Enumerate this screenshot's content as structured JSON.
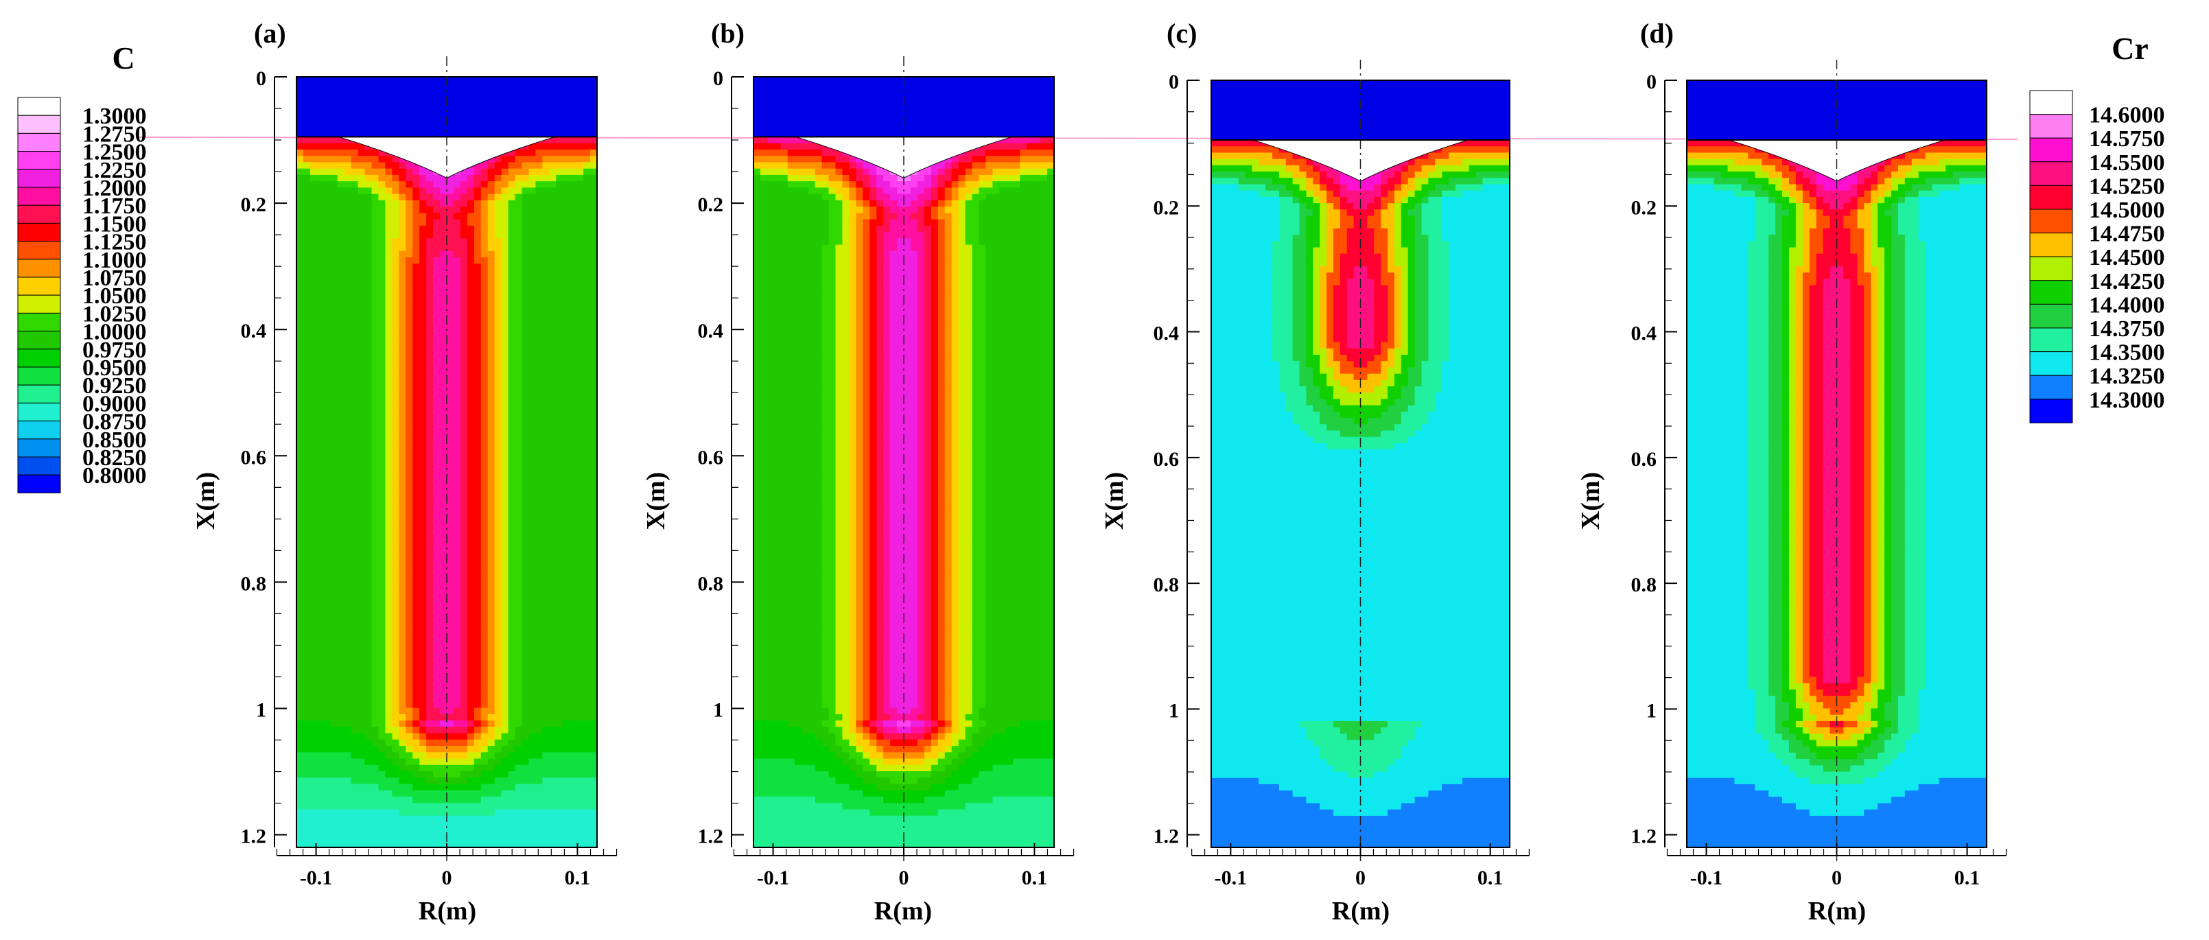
{
  "chart_data": [
    {
      "type": "heatmap",
      "panel_label": "(a)",
      "variable": "C",
      "xlabel": "R(m)",
      "ylabel": "X(m)",
      "x_ticks": [
        "-0.1",
        "0",
        "0.1"
      ],
      "y_ticks": [
        "0",
        "0.2",
        "0.4",
        "0.6",
        "0.8",
        "1",
        "1.2"
      ],
      "xlim": [
        -0.115,
        0.115
      ],
      "ylim": [
        0,
        1.22
      ],
      "domain_r": [
        -0.115,
        0.115
      ],
      "mold_region_x": [
        0,
        0.095
      ],
      "centerline_peak_x": [
        0.3,
        1.0
      ],
      "centerline_peak_value": 1.1875,
      "approx_edge_value": 0.975,
      "approx_bottom_value": 0.875
    },
    {
      "type": "heatmap",
      "panel_label": "(b)",
      "variable": "C",
      "xlabel": "R(m)",
      "ylabel": "X(m)",
      "x_ticks": [
        "-0.1",
        "0",
        "0.1"
      ],
      "y_ticks": [
        "0",
        "0.2",
        "0.4",
        "0.6",
        "0.8",
        "1",
        "1.2"
      ],
      "xlim": [
        -0.115,
        0.115
      ],
      "ylim": [
        0,
        1.22
      ],
      "domain_r": [
        -0.115,
        0.115
      ],
      "mold_region_x": [
        0,
        0.095
      ],
      "centerline_peak_x": [
        0.28,
        1.0
      ],
      "centerline_peak_value": 1.2125,
      "approx_edge_value": 0.975,
      "approx_bottom_value": 0.9
    },
    {
      "type": "heatmap",
      "panel_label": "(c)",
      "variable": "Cr",
      "xlabel": "R(m)",
      "ylabel": "X(m)",
      "x_ticks": [
        "-0.1",
        "0",
        "0.1"
      ],
      "y_ticks": [
        "0",
        "0.2",
        "0.4",
        "0.6",
        "0.8",
        "1",
        "1.2"
      ],
      "xlim": [
        -0.115,
        0.115
      ],
      "ylim": [
        0,
        1.22
      ],
      "domain_r": [
        -0.115,
        0.115
      ],
      "mold_region_x": [
        0,
        0.095
      ],
      "centerline_peak_x": [
        0.33,
        0.42
      ],
      "centerline_peak_value": 14.5375,
      "approx_edge_value": 14.3375,
      "approx_bottom_value": 14.3125
    },
    {
      "type": "heatmap",
      "panel_label": "(d)",
      "variable": "Cr",
      "xlabel": "R(m)",
      "ylabel": "X(m)",
      "x_ticks": [
        "-0.1",
        "0",
        "0.1"
      ],
      "y_ticks": [
        "0",
        "0.2",
        "0.4",
        "0.6",
        "0.8",
        "1",
        "1.2"
      ],
      "xlim": [
        -0.115,
        0.115
      ],
      "ylim": [
        0,
        1.22
      ],
      "domain_r": [
        -0.115,
        0.115
      ],
      "mold_region_x": [
        0,
        0.095
      ],
      "centerline_peak_x": [
        0.33,
        0.95
      ],
      "centerline_peak_value": 14.5375,
      "approx_edge_value": 14.3375,
      "approx_bottom_value": 14.3125
    }
  ],
  "legends": {
    "C": {
      "title": "C",
      "labels": [
        "1.3000",
        "1.2750",
        "1.2500",
        "1.2250",
        "1.2000",
        "1.1750",
        "1.1500",
        "1.1250",
        "1.1000",
        "1.0750",
        "1.0500",
        "1.0250",
        "1.0000",
        "0.9750",
        "0.9500",
        "0.9250",
        "0.9000",
        "0.8750",
        "0.8500",
        "0.8250",
        "0.8000"
      ],
      "values": [
        1.3,
        1.275,
        1.25,
        1.225,
        1.2,
        1.175,
        1.15,
        1.125,
        1.1,
        1.075,
        1.05,
        1.025,
        1.0,
        0.975,
        0.95,
        0.925,
        0.9,
        0.875,
        0.85,
        0.825,
        0.8
      ]
    },
    "Cr": {
      "title": "Cr",
      "labels": [
        "14.6000",
        "14.5750",
        "14.5500",
        "14.5250",
        "14.5000",
        "14.4750",
        "14.4500",
        "14.4250",
        "14.4000",
        "14.3750",
        "14.3500",
        "14.3250",
        "14.3000"
      ],
      "values": [
        14.6,
        14.575,
        14.55,
        14.525,
        14.5,
        14.475,
        14.45,
        14.425,
        14.4,
        14.375,
        14.35,
        14.325,
        14.3
      ]
    }
  },
  "colors": {
    "mold": "#0000e6",
    "c_scale": [
      "#ffffff",
      "#ffc0ff",
      "#ff80ff",
      "#ff40f0",
      "#f020e0",
      "#ff10a0",
      "#ff1050",
      "#ff0000",
      "#ff5000",
      "#ff9000",
      "#ffd000",
      "#d0f000",
      "#30d800",
      "#20c800",
      "#00d000",
      "#10e040",
      "#20f090",
      "#20f0d0",
      "#10d0f0",
      "#0090f0",
      "#0050f0",
      "#0000ff"
    ],
    "cr_scale": [
      "#ffffff",
      "#ff80f0",
      "#ff10d0",
      "#ff1080",
      "#ff0030",
      "#ff5000",
      "#ffc000",
      "#b0f000",
      "#10d000",
      "#20d040",
      "#20f0a0",
      "#10e8f0",
      "#1080ff",
      "#0000ff"
    ]
  }
}
